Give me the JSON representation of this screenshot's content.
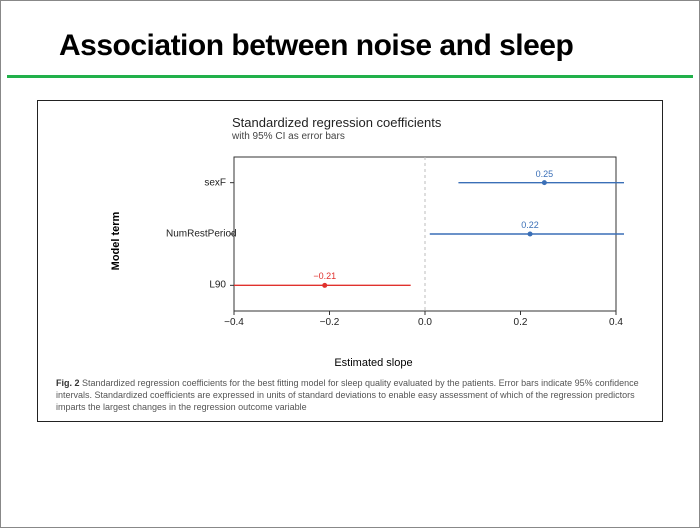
{
  "slide": {
    "title": "Association between noise and sleep"
  },
  "chart": {
    "type": "dot-and-error-bar",
    "title": "Standardized regression coefficients",
    "subtitle": "with 95% CI as error bars",
    "y_axis_title": "Model term",
    "x_axis_title": "Estimated slope",
    "xlim": [
      -0.4,
      0.4
    ],
    "xticks": [
      -0.4,
      -0.2,
      0.0,
      0.2,
      0.4
    ],
    "xtick_labels": [
      "−0.4",
      "−0.2",
      "0.0",
      "0.2",
      "0.4"
    ],
    "categories": [
      "sexF",
      "NumRestPeriod",
      "L90"
    ],
    "series": [
      {
        "name": "sexF",
        "estimate": 0.25,
        "ci_low": 0.07,
        "ci_high": 0.42,
        "color": "#3a6fb7",
        "text_color": "#3a6fb7",
        "label": "0.25"
      },
      {
        "name": "NumRestPeriod",
        "estimate": 0.22,
        "ci_low": 0.01,
        "ci_high": 0.43,
        "color": "#3a6fb7",
        "text_color": "#3a6fb7",
        "label": "0.22"
      },
      {
        "name": "L90",
        "estimate": -0.21,
        "ci_low": -0.4,
        "ci_high": -0.03,
        "color": "#e0312d",
        "text_color": "#e0312d",
        "label": "−0.21"
      }
    ],
    "background_color": "#ffffff",
    "panel_border_color": "#333333",
    "zero_line": {
      "x": 0.0,
      "color": "#bdbdbd",
      "dash": "3,3"
    },
    "grid_color": "none",
    "marker_radius": 2.5,
    "line_width": 1.4,
    "caption_prefix": "Fig. 2",
    "caption": "Standardized regression coefficients for the best fitting model for sleep quality evaluated by the patients. Error bars indicate 95% confidence intervals. Standardized coefficients are expressed in units of standard deviations to enable easy assessment of which of the regression predictors imparts the largest changes in the regression outcome variable",
    "fonts": {
      "title_size_pt": 13,
      "subtitle_size_pt": 10,
      "axis_title_size_pt": 11,
      "tick_size_pt": 10,
      "point_label_size_pt": 9,
      "caption_size_pt": 9
    }
  }
}
